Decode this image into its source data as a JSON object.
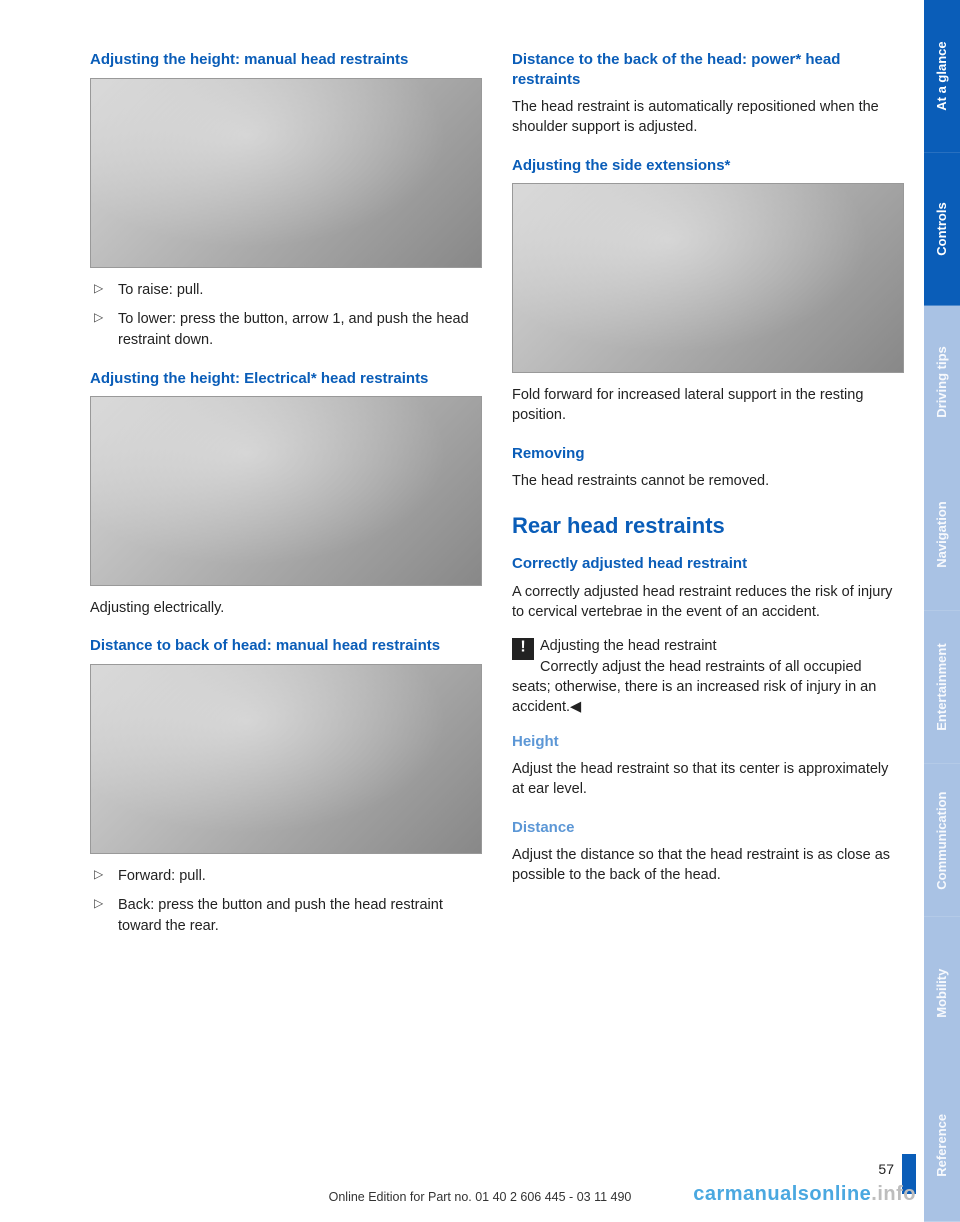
{
  "colors": {
    "brand_blue": "#0a5db8",
    "light_blue_heading": "#5c97d6",
    "tab_at_a_glance": "#0a5db8",
    "tab_controls": "#0a5db8",
    "tab_driving_tips": "#a9c2e4",
    "tab_navigation": "#a9c2e4",
    "tab_entertainment": "#a9c2e4",
    "tab_communication": "#a9c2e4",
    "tab_mobility": "#a9c2e4",
    "tab_reference": "#a9c2e4"
  },
  "sidebar": {
    "tabs": [
      {
        "label": "At a glance",
        "bg": "#0a5db8"
      },
      {
        "label": "Controls",
        "bg": "#0a5db8"
      },
      {
        "label": "Driving tips",
        "bg": "#a9c2e4"
      },
      {
        "label": "Navigation",
        "bg": "#a9c2e4"
      },
      {
        "label": "Entertainment",
        "bg": "#a9c2e4"
      },
      {
        "label": "Communication",
        "bg": "#a9c2e4"
      },
      {
        "label": "Mobility",
        "bg": "#a9c2e4"
      },
      {
        "label": "Reference",
        "bg": "#a9c2e4"
      }
    ]
  },
  "left": {
    "h_manual_height": "Adjusting the height: manual head restraints",
    "manual_height_items": {
      "i1": "To raise: pull.",
      "i2": "To lower: press the button, arrow 1, and push the head restraint down."
    },
    "h_elec_height": "Adjusting the height: Electrical* head restraints",
    "elec_caption": "Adjusting electrically.",
    "h_dist_manual": "Distance to back of head: manual head restraints",
    "dist_manual_items": {
      "i1": "Forward: pull.",
      "i2": "Back: press the button and push the head restraint toward the rear."
    }
  },
  "right": {
    "h_dist_power": "Distance to the back of the head: power* head restraints",
    "dist_power_text": "The head restraint is automatically repositioned when the shoulder support is adjusted.",
    "h_side_ext": "Adjusting the side extensions*",
    "side_ext_text": "Fold forward for increased lateral support in the resting position.",
    "h_removing": "Removing",
    "removing_text": "The head restraints cannot be removed.",
    "h_rear": "Rear head restraints",
    "h_correct": "Correctly adjusted head restraint",
    "correct_text": "A correctly adjusted head restraint reduces the risk of injury to cervical vertebrae in the event of an accident.",
    "warn_title": "Adjusting the head restraint",
    "warn_body": "Correctly adjust the head restraints of all occupied seats; otherwise, there is an increased risk of injury in an accident.◀",
    "h_height": "Height",
    "height_text": "Adjust the head restraint so that its center is approximately at ear level.",
    "h_distance": "Distance",
    "distance_text": "Adjust the distance so that the head restraint is as close as possible to the back of the head."
  },
  "footer": {
    "page_number": "57",
    "edition_line": "Online Edition for Part no. 01 40 2 606 445 - 03 11 490",
    "watermark_1": "carmanualsonline",
    "watermark_2": ".info"
  }
}
